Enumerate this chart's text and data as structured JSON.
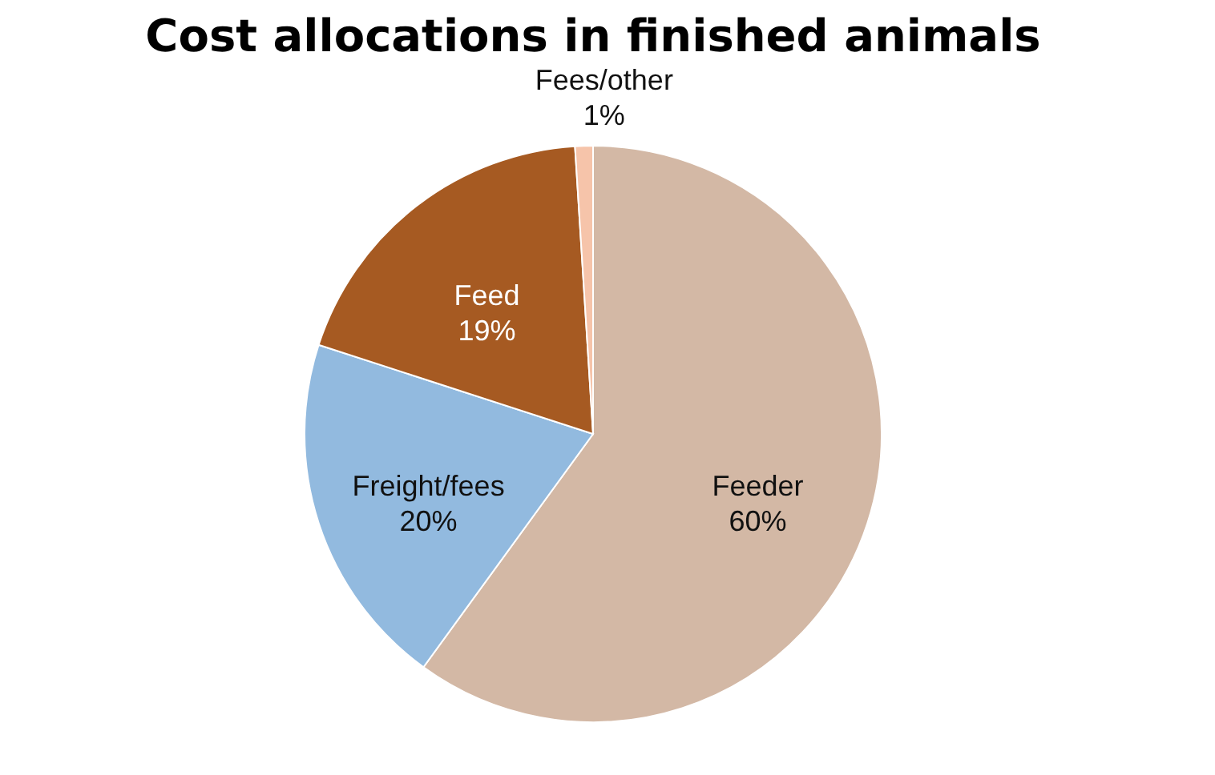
{
  "chart_data": {
    "type": "pie",
    "title": "Cost allocations in finished animals",
    "categories": [
      "Feeder",
      "Freight/fees",
      "Feed",
      "Fees/other"
    ],
    "values": [
      60,
      20,
      19,
      1
    ],
    "colors": [
      "#d3b8a5",
      "#92badf",
      "#a65a22",
      "#f6c4aa"
    ],
    "value_labels": [
      "60%",
      "20%",
      "19%",
      "1%"
    ],
    "legend": false
  }
}
